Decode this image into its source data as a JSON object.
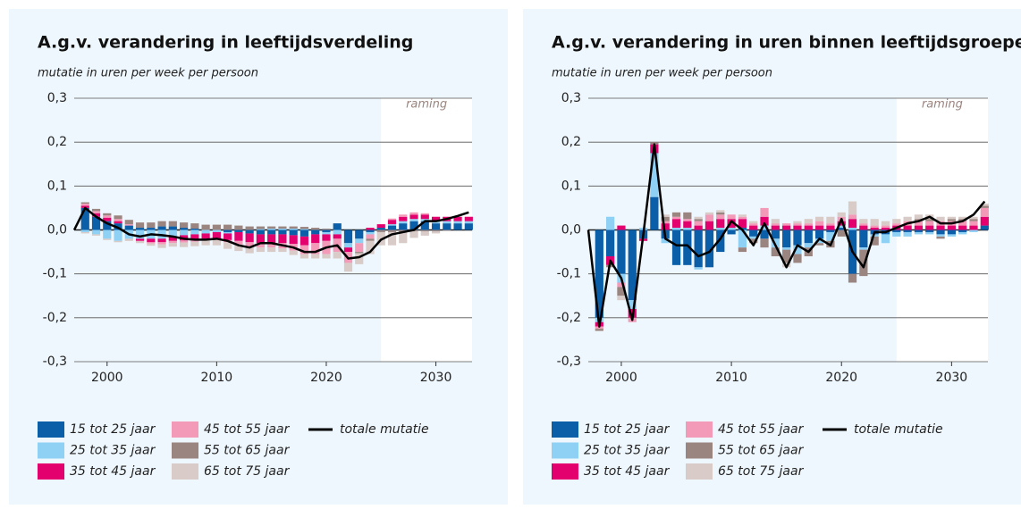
{
  "chart_data": [
    {
      "type": "bar",
      "stacked": true,
      "title": "A.g.v. verandering in leeftijdsverdeling",
      "subtitle": "mutatie in uren per week per persoon",
      "annotation": {
        "text": "raming",
        "x_from": 2025
      },
      "x": [
        1997,
        1998,
        1999,
        2000,
        2001,
        2002,
        2003,
        2004,
        2005,
        2006,
        2007,
        2008,
        2009,
        2010,
        2011,
        2012,
        2013,
        2014,
        2015,
        2016,
        2017,
        2018,
        2019,
        2020,
        2021,
        2022,
        2023,
        2024,
        2025,
        2026,
        2027,
        2028,
        2029,
        2030,
        2031,
        2032,
        2033
      ],
      "xlim": [
        1997,
        2033.3
      ],
      "xticks": [
        2000,
        2010,
        2020,
        2030
      ],
      "ylim": [
        -0.3,
        0.3
      ],
      "yticks": [
        {
          "value": -0.3,
          "label": "-0,3"
        },
        {
          "value": -0.2,
          "label": "-0,2"
        },
        {
          "value": -0.1,
          "label": "-0,1"
        },
        {
          "value": 0,
          "label": "0,0"
        },
        {
          "value": 0.1,
          "label": "0,1"
        },
        {
          "value": 0.2,
          "label": "0,2"
        },
        {
          "value": 0.3,
          "label": "0,3"
        }
      ],
      "grid": true,
      "series": [
        {
          "name": "15 tot 25 jaar",
          "color": "#0b5ea8",
          "values": [
            null,
            0.05,
            0.03,
            0.02,
            0.015,
            0.01,
            0.005,
            0.005,
            0.008,
            0.008,
            0.005,
            0.003,
            0,
            0,
            -0.005,
            -0.005,
            -0.008,
            -0.01,
            -0.01,
            -0.01,
            -0.012,
            -0.015,
            -0.01,
            -0.005,
            0.015,
            -0.03,
            -0.02,
            -0.005,
            0.005,
            0.01,
            0.015,
            0.02,
            0.02,
            0.015,
            0.015,
            0.015,
            0.015
          ]
        },
        {
          "name": "25 tot 35 jaar",
          "color": "#8fd0f5",
          "values": [
            null,
            -0.005,
            -0.01,
            -0.02,
            -0.025,
            -0.02,
            -0.02,
            -0.02,
            -0.02,
            -0.015,
            -0.012,
            -0.01,
            -0.008,
            -0.005,
            -0.003,
            0,
            0,
            0.002,
            0.003,
            0.003,
            0.003,
            0.002,
            0,
            -0.005,
            -0.01,
            -0.01,
            -0.01,
            -0.005,
            0,
            0.003,
            0.005,
            0.005,
            0.005,
            0.005,
            0.005,
            0.005,
            0.005
          ]
        },
        {
          "name": "35 tot 45 jaar",
          "color": "#e3006e",
          "values": [
            null,
            0.005,
            0.008,
            0.008,
            0.005,
            0,
            -0.005,
            -0.008,
            -0.008,
            -0.01,
            -0.012,
            -0.012,
            -0.012,
            -0.015,
            -0.015,
            -0.02,
            -0.02,
            -0.02,
            -0.02,
            -0.02,
            -0.02,
            -0.02,
            -0.02,
            -0.015,
            -0.01,
            -0.01,
            0,
            0.005,
            0.008,
            0.01,
            0.01,
            0.01,
            0.01,
            0.01,
            0.01,
            0.01,
            0.01
          ]
        },
        {
          "name": "45 tot 55 jaar",
          "color": "#f29ab8",
          "values": [
            null,
            0.005,
            0.005,
            0.005,
            0.005,
            0.003,
            0,
            -0.003,
            -0.005,
            -0.005,
            -0.005,
            -0.005,
            -0.003,
            -0.003,
            -0.005,
            -0.008,
            -0.01,
            -0.01,
            -0.01,
            -0.012,
            -0.015,
            -0.02,
            -0.025,
            -0.03,
            -0.03,
            -0.025,
            -0.02,
            -0.01,
            0,
            0.003,
            0.005,
            0.005,
            0.003,
            0,
            0,
            0,
            0
          ]
        },
        {
          "name": "55 tot 65 jaar",
          "color": "#9b8580",
          "values": [
            null,
            0.003,
            0.005,
            0.005,
            0.008,
            0.01,
            0.012,
            0.012,
            0.012,
            0.012,
            0.012,
            0.012,
            0.012,
            0.012,
            0.012,
            0.01,
            0.008,
            0.006,
            0.005,
            0.005,
            0.005,
            0.005,
            0.005,
            0.003,
            0,
            0,
            -0.003,
            -0.005,
            -0.005,
            -0.005,
            -0.005,
            -0.003,
            -0.003,
            -0.003,
            -0.002,
            0,
            0
          ]
        },
        {
          "name": "65 tot 75 jaar",
          "color": "#d8cbc8",
          "values": [
            null,
            -0.003,
            -0.003,
            -0.003,
            -0.003,
            -0.005,
            -0.005,
            -0.005,
            -0.008,
            -0.008,
            -0.01,
            -0.01,
            -0.012,
            -0.012,
            -0.015,
            -0.015,
            -0.015,
            -0.01,
            -0.01,
            -0.008,
            -0.01,
            -0.01,
            -0.01,
            -0.01,
            -0.015,
            -0.02,
            -0.025,
            -0.03,
            -0.03,
            -0.03,
            -0.025,
            -0.015,
            -0.01,
            -0.005,
            0,
            0,
            0
          ]
        },
        {
          "name": "totale mutatie",
          "type": "line",
          "color": "#000000",
          "values": [
            0,
            0.05,
            0.03,
            0.015,
            0.005,
            -0.01,
            -0.015,
            -0.01,
            -0.012,
            -0.015,
            -0.02,
            -0.022,
            -0.022,
            -0.02,
            -0.025,
            -0.035,
            -0.04,
            -0.03,
            -0.03,
            -0.035,
            -0.04,
            -0.05,
            -0.05,
            -0.04,
            -0.035,
            -0.065,
            -0.062,
            -0.05,
            -0.022,
            -0.01,
            -0.005,
            0,
            0.02,
            0.02,
            0.025,
            0.032,
            0.04
          ]
        }
      ]
    },
    {
      "type": "bar",
      "stacked": true,
      "title": "A.g.v. verandering in uren binnen leeftijdsgroepen",
      "subtitle": "mutatie in uren per week per persoon",
      "annotation": {
        "text": "raming",
        "x_from": 2025
      },
      "x": [
        1997,
        1998,
        1999,
        2000,
        2001,
        2002,
        2003,
        2004,
        2005,
        2006,
        2007,
        2008,
        2009,
        2010,
        2011,
        2012,
        2013,
        2014,
        2015,
        2016,
        2017,
        2018,
        2019,
        2020,
        2021,
        2022,
        2023,
        2024,
        2025,
        2026,
        2027,
        2028,
        2029,
        2030,
        2031,
        2032,
        2033
      ],
      "xlim": [
        1997,
        2033.3
      ],
      "xticks": [
        2000,
        2010,
        2020,
        2030
      ],
      "ylim": [
        -0.3,
        0.3
      ],
      "yticks": [
        {
          "value": -0.3,
          "label": "-0,3"
        },
        {
          "value": -0.2,
          "label": "-0,2"
        },
        {
          "value": -0.1,
          "label": "-0,1"
        },
        {
          "value": 0,
          "label": "0,0"
        },
        {
          "value": 0.1,
          "label": "0,1"
        },
        {
          "value": 0.2,
          "label": "0,2"
        },
        {
          "value": 0.3,
          "label": "0,3"
        }
      ],
      "grid": true,
      "series": [
        {
          "name": "15 tot 25 jaar",
          "color": "#0b5ea8",
          "values": [
            null,
            -0.2,
            -0.06,
            -0.1,
            -0.16,
            -0.02,
            0.075,
            -0.02,
            -0.08,
            -0.08,
            -0.085,
            -0.085,
            -0.05,
            -0.01,
            0.005,
            -0.015,
            -0.02,
            -0.02,
            -0.04,
            -0.035,
            -0.03,
            -0.02,
            -0.005,
            0.005,
            -0.1,
            -0.04,
            -0.01,
            -0.01,
            -0.005,
            -0.005,
            -0.005,
            -0.005,
            -0.01,
            -0.01,
            -0.005,
            0,
            0.01
          ]
        },
        {
          "name": "25 tot 35 jaar",
          "color": "#8fd0f5",
          "values": [
            null,
            -0.01,
            0.03,
            -0.02,
            -0.02,
            0.005,
            0.1,
            -0.01,
            0.005,
            0.005,
            -0.005,
            0,
            0.005,
            0.005,
            -0.04,
            -0.005,
            0.01,
            -0.02,
            -0.005,
            -0.02,
            -0.01,
            -0.01,
            -0.02,
            0.005,
            0.005,
            -0.005,
            -0.005,
            -0.02,
            -0.01,
            -0.01,
            -0.005,
            -0.005,
            -0.005,
            -0.005,
            -0.005,
            -0.005,
            0
          ]
        },
        {
          "name": "35 tot 45 jaar",
          "color": "#e3006e",
          "values": [
            null,
            -0.01,
            -0.02,
            0.01,
            -0.02,
            -0.005,
            0.02,
            0.015,
            0.02,
            0.015,
            0.01,
            0.02,
            0.02,
            0.02,
            0.02,
            0.01,
            0.02,
            0.01,
            0.01,
            0.01,
            0.01,
            0.01,
            0.01,
            0.01,
            0.02,
            0.01,
            0.005,
            0.005,
            0.01,
            0.01,
            0.01,
            0.01,
            0.01,
            0.01,
            0.01,
            0.01,
            0.02
          ]
        },
        {
          "name": "45 tot 55 jaar",
          "color": "#f29ab8",
          "values": [
            null,
            -0.005,
            0,
            -0.01,
            -0.01,
            0,
            0,
            0.005,
            0.005,
            0.005,
            0.01,
            0.015,
            0.01,
            0.01,
            0.005,
            0.005,
            0.02,
            0.005,
            0.005,
            0.005,
            0.005,
            0.01,
            0.005,
            0.01,
            0.01,
            0.005,
            0.005,
            0.005,
            0.005,
            0.01,
            0.01,
            0.01,
            0.01,
            0.01,
            0.01,
            0.01,
            0.02
          ]
        },
        {
          "name": "55 tot 65 jaar",
          "color": "#9b8580",
          "values": [
            null,
            -0.005,
            -0.005,
            -0.02,
            0,
            0,
            0.005,
            0.01,
            0.01,
            0.015,
            0.005,
            0,
            0.005,
            0,
            -0.01,
            -0.01,
            -0.02,
            -0.02,
            -0.03,
            -0.02,
            -0.02,
            -0.005,
            -0.015,
            -0.015,
            -0.02,
            -0.06,
            -0.02,
            0,
            0,
            0,
            0.005,
            0.005,
            -0.005,
            0.005,
            0.005,
            0.005,
            0.005
          ]
        },
        {
          "name": "65 tot 75 jaar",
          "color": "#d8cbc8",
          "values": [
            null,
            0,
            0,
            -0.01,
            0,
            0,
            0,
            0.005,
            0,
            0,
            0.005,
            0.005,
            0.005,
            0,
            0.005,
            0.005,
            0,
            0.01,
            -0.01,
            0.005,
            0.01,
            0.01,
            0.015,
            0.01,
            0.03,
            0.01,
            0.015,
            0.01,
            0.01,
            0.01,
            0.01,
            0.01,
            0.01,
            0.005,
            0.005,
            0.005,
            0.005
          ]
        },
        {
          "name": "totale mutatie",
          "type": "line",
          "color": "#000000",
          "values": [
            0,
            -0.22,
            -0.07,
            -0.11,
            -0.205,
            -0.01,
            0.195,
            -0.02,
            -0.035,
            -0.035,
            -0.06,
            -0.05,
            -0.02,
            0.02,
            0,
            -0.035,
            0.015,
            -0.035,
            -0.085,
            -0.035,
            -0.05,
            -0.02,
            -0.035,
            0.025,
            -0.05,
            -0.085,
            -0.005,
            -0.005,
            0.005,
            0.015,
            0.02,
            0.03,
            0.015,
            0.015,
            0.02,
            0.035,
            0.065
          ]
        }
      ]
    }
  ]
}
